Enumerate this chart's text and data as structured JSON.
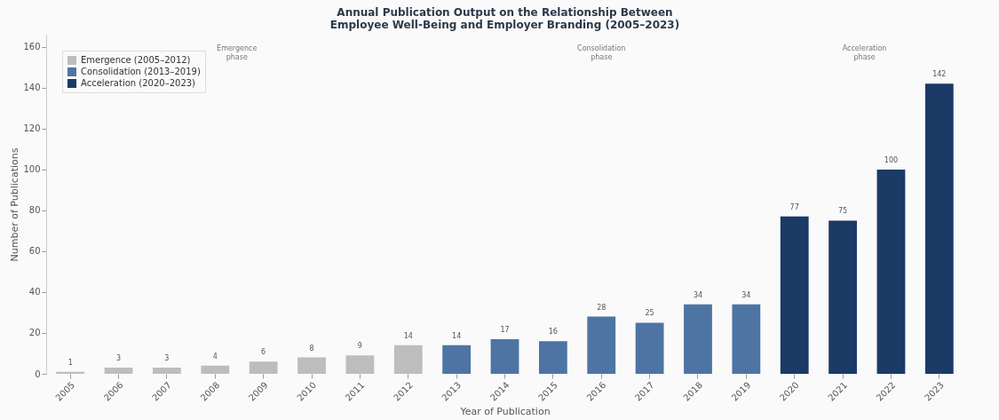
{
  "chart_data": {
    "type": "bar",
    "title": "Annual Publication Output on the Relationship Between\nEmployee Well-Being and Employer Branding (2005–2023)",
    "xlabel": "Year of Publication",
    "ylabel": "Number of Publications",
    "categories": [
      "2005",
      "2006",
      "2007",
      "2008",
      "2009",
      "2010",
      "2011",
      "2012",
      "2013",
      "2014",
      "2015",
      "2016",
      "2017",
      "2018",
      "2019",
      "2020",
      "2021",
      "2022",
      "2023"
    ],
    "series": [
      {
        "name": "Emergence (2005–2012)",
        "color": "#bdbdbd",
        "values": [
          1,
          3,
          3,
          4,
          6,
          8,
          9,
          14,
          null,
          null,
          null,
          null,
          null,
          null,
          null,
          null,
          null,
          null,
          null
        ]
      },
      {
        "name": "Consolidation (2013–2019)",
        "color": "#4d74a3",
        "values": [
          null,
          null,
          null,
          null,
          null,
          null,
          null,
          null,
          14,
          17,
          16,
          28,
          25,
          34,
          34,
          null,
          null,
          null,
          null
        ]
      },
      {
        "name": "Acceleration (2020–2023)",
        "color": "#1b3a66",
        "values": [
          null,
          null,
          null,
          null,
          null,
          null,
          null,
          null,
          null,
          null,
          null,
          null,
          null,
          null,
          null,
          77,
          75,
          100,
          142
        ]
      }
    ],
    "ylim": [
      0,
      166
    ],
    "yticks": [
      0,
      20,
      40,
      60,
      80,
      100,
      120,
      140,
      160
    ],
    "data_labels": true,
    "legend": "top left",
    "grid": false,
    "annotations": [
      "Emergence\nphase",
      "Consolidation\nphase",
      "Acceleration\nphase"
    ]
  }
}
